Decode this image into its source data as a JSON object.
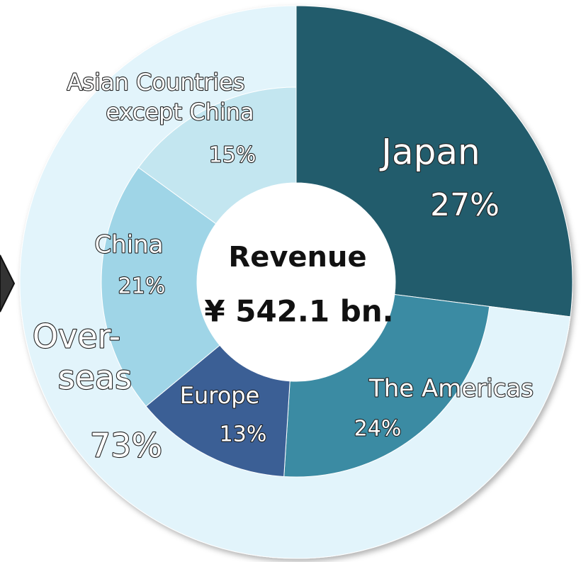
{
  "chart_data": {
    "type": "donut",
    "center_text": [
      "Revenue",
      "¥ 542.1 bn."
    ],
    "outer": {
      "categories": [
        "Japan",
        [
          "Over-",
          "seas"
        ]
      ],
      "values": [
        27,
        73
      ],
      "value_labels": [
        "27%",
        "73%"
      ],
      "colors": [
        "#245b6c",
        "#e2f4fb"
      ]
    },
    "inner": {
      "categories": [
        "The Americas",
        "Europe",
        "China",
        [
          "Asian Countries",
          "except China"
        ]
      ],
      "values": [
        24,
        13,
        21,
        15
      ],
      "value_labels": [
        "24%",
        "13%",
        "21%",
        "15%"
      ],
      "colors": [
        "#3a8ba3",
        "#3a5e95",
        "#9fd5e7",
        "#c3e6f0"
      ]
    }
  }
}
